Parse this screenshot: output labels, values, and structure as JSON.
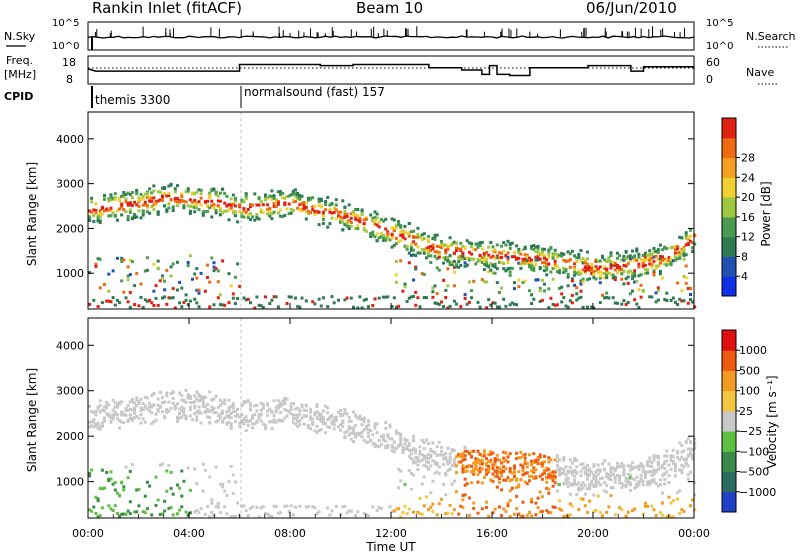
{
  "header": {
    "station": "Rankin Inlet (fitACF)",
    "beam": "Beam 10",
    "date": "06/Jun/2010"
  },
  "noise_panel": {
    "left_label": "N.Sky",
    "right_label": "N.Search",
    "left_ticks": [
      "10^5",
      "10^0"
    ],
    "right_ticks": [
      "10^5",
      "10^0"
    ]
  },
  "freq_panel": {
    "left_label_1": "Freq.",
    "left_label_2": "[MHz]",
    "right_label": "Nave",
    "left_ticks": [
      "18",
      "8"
    ],
    "right_ticks": [
      "60",
      "0"
    ]
  },
  "cpid": {
    "label": "CPID",
    "modes": [
      {
        "start_hour": 0,
        "label": "themis 3300"
      },
      {
        "start_hour": 6,
        "label": "normalsound (fast) 157"
      }
    ]
  },
  "chart_data": [
    {
      "type": "heatmap",
      "panel": "power",
      "ylabel": "Slant Range [km]",
      "y_ticks": [
        "1000",
        "2000",
        "3000",
        "4000"
      ],
      "ylim": [
        200,
        4600
      ],
      "xlim": [
        0,
        24
      ],
      "colorbar_label": "Power [dB]",
      "colorbar_ticks": [
        "4",
        "8",
        "12",
        "16",
        "20",
        "24",
        "28"
      ],
      "colorbar_colors": [
        "#1030e8",
        "#2050b0",
        "#2e7a52",
        "#4a9a50",
        "#9ec840",
        "#f0d030",
        "#f5a020",
        "#ee6a10",
        "#e02010"
      ],
      "bands": [
        {
          "x": [
            0.0,
            1.0,
            2.0,
            3.0,
            4.0,
            5.0,
            6.0,
            7.0,
            8.0,
            9.0,
            10.0,
            11.0,
            12.0,
            13.0,
            14.0,
            15.0,
            16.0,
            17.0,
            18.0,
            19.0,
            20.0,
            21.0,
            22.0,
            23.0,
            24.0
          ],
          "range_km": [
            2400,
            2500,
            2550,
            2700,
            2650,
            2600,
            2450,
            2500,
            2550,
            2400,
            2300,
            2100,
            1900,
            1700,
            1500,
            1450,
            1400,
            1350,
            1300,
            1200,
            1100,
            1150,
            1200,
            1400,
            1800
          ]
        }
      ]
    },
    {
      "type": "heatmap",
      "panel": "velocity",
      "ylabel": "Slant Range [km]",
      "y_ticks": [
        "1000",
        "2000",
        "3000",
        "4000"
      ],
      "ylim": [
        200,
        4600
      ],
      "xlim": [
        0,
        24
      ],
      "x_ticks": [
        "00:00",
        "04:00",
        "08:00",
        "12:00",
        "16:00",
        "20:00",
        "00:00"
      ],
      "xlabel": "Time UT",
      "colorbar_label": "Velocity [m s⁻¹]",
      "colorbar_ticks": [
        "1000",
        "500",
        "100",
        "25",
        "−25",
        "−100",
        "−500",
        "−1000"
      ],
      "colorbar_colors": [
        "#2040c8",
        "#2a6c62",
        "#3a8a4a",
        "#5cc040",
        "#c8c8c8",
        "#f3c540",
        "#f59a20",
        "#ee5a10",
        "#e01010"
      ]
    }
  ]
}
